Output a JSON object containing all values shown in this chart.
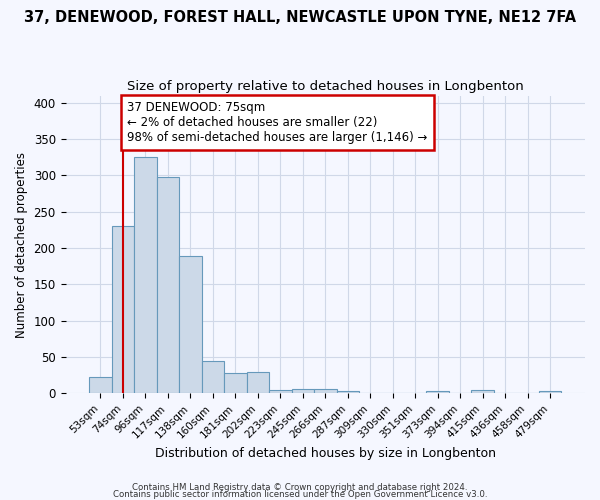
{
  "title1": "37, DENEWOOD, FOREST HALL, NEWCASTLE UPON TYNE, NE12 7FA",
  "title2": "Size of property relative to detached houses in Longbenton",
  "xlabel": "Distribution of detached houses by size in Longbenton",
  "ylabel": "Number of detached properties",
  "categories": [
    "53sqm",
    "74sqm",
    "96sqm",
    "117sqm",
    "138sqm",
    "160sqm",
    "181sqm",
    "202sqm",
    "223sqm",
    "245sqm",
    "266sqm",
    "287sqm",
    "309sqm",
    "330sqm",
    "351sqm",
    "373sqm",
    "394sqm",
    "415sqm",
    "436sqm",
    "458sqm",
    "479sqm"
  ],
  "values": [
    23,
    230,
    325,
    298,
    189,
    45,
    28,
    30,
    5,
    6,
    6,
    3,
    0,
    0,
    0,
    3,
    0,
    5,
    0,
    0,
    4
  ],
  "bar_color": "#ccd9e8",
  "bar_edge_color": "#6699bb",
  "vline_x": 1.0,
  "vline_color": "#cc0000",
  "ann_line1": "37 DENEWOOD: 75sqm",
  "ann_line2": "← 2% of detached houses are smaller (22)",
  "ann_line3": "98% of semi-detached houses are larger (1,146) →",
  "annotation_box_color": "#ffffff",
  "annotation_box_edge": "#cc0000",
  "footnote1": "Contains HM Land Registry data © Crown copyright and database right 2024.",
  "footnote2": "Contains public sector information licensed under the Open Government Licence v3.0.",
  "bg_color": "#f5f7ff",
  "grid_color": "#d0d8e8",
  "ylim": [
    0,
    410
  ],
  "yticks": [
    0,
    50,
    100,
    150,
    200,
    250,
    300,
    350,
    400
  ],
  "title1_fontsize": 10.5,
  "title2_fontsize": 9.5
}
